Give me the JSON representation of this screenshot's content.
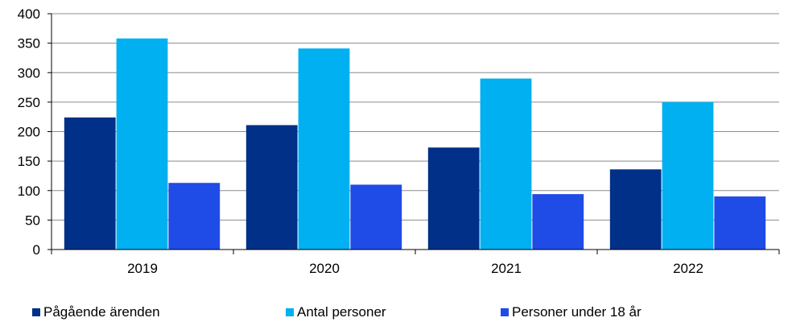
{
  "chart_data": {
    "type": "bar",
    "categories": [
      "2019",
      "2020",
      "2021",
      "2022"
    ],
    "series": [
      {
        "name": "Pågående ärenden",
        "values": [
          224,
          211,
          173,
          136
        ],
        "color": "#003087"
      },
      {
        "name": "Antal personer",
        "values": [
          358,
          341,
          290,
          250
        ],
        "color": "#00B0F0"
      },
      {
        "name": "Personer under 18 år",
        "values": [
          113,
          110,
          94,
          90
        ],
        "color": "#1F4BE6"
      }
    ],
    "yticks": [
      "0",
      "50",
      "100",
      "150",
      "200",
      "250",
      "300",
      "350",
      "400"
    ],
    "ylim": [
      0,
      400
    ],
    "grid": true,
    "legend_position": "bottom"
  }
}
